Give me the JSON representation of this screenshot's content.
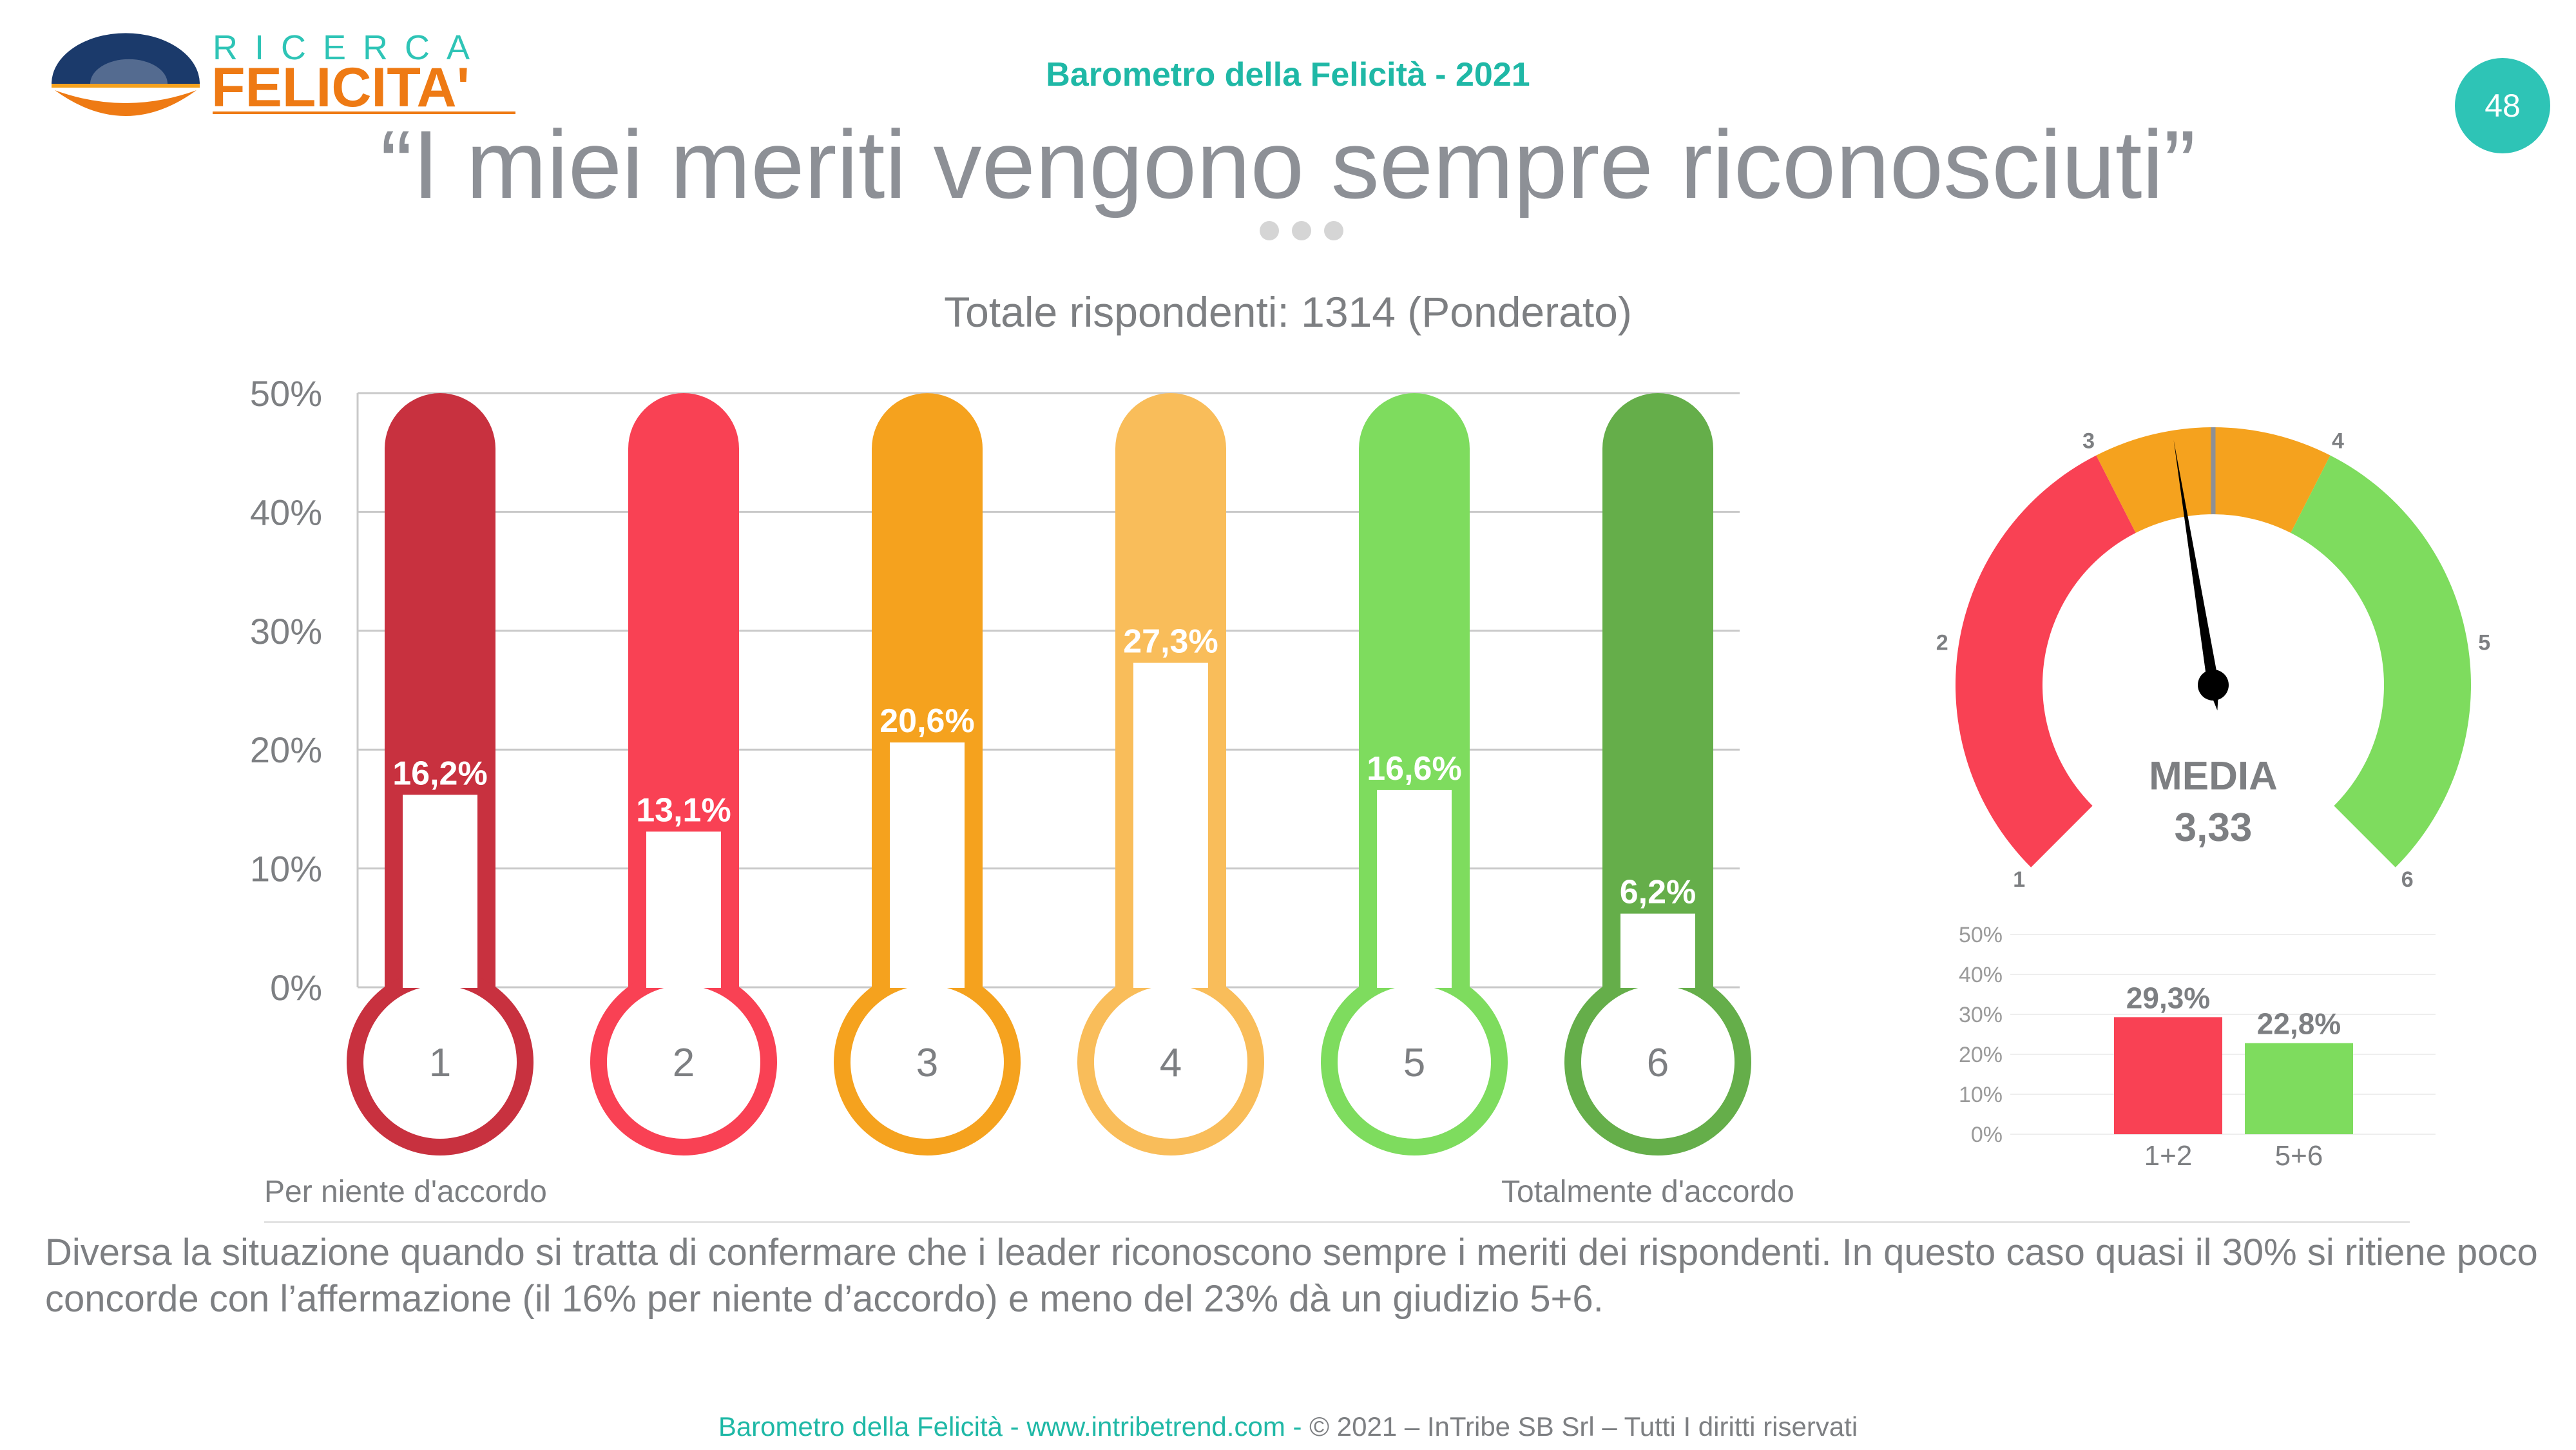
{
  "header": {
    "logo_top": "RICERCA",
    "logo_bottom": "FELICITA'",
    "title": "Barometro della Felicità - 2021",
    "page_number": "48"
  },
  "main_title": "“I miei meriti vengono sempre riconosciuti”",
  "subtitle": "Totale rispondenti: 1314 (Ponderato)",
  "labels": {
    "left": "Per niente d'accordo",
    "right": "Totalmente d'accordo"
  },
  "colors": {
    "teal": "#1fb8a6",
    "scale": [
      "#c8313f",
      "#f94154",
      "#f5a21e",
      "#f9bd5a",
      "#7edc5e",
      "#65ae4a"
    ]
  },
  "chart_data": [
    {
      "type": "bar",
      "categories": [
        "1",
        "2",
        "3",
        "4",
        "5",
        "6"
      ],
      "values": [
        16.2,
        13.1,
        20.6,
        27.3,
        16.6,
        6.2
      ],
      "value_labels": [
        "16,2%",
        "13,1%",
        "20,6%",
        "27,3%",
        "16,6%",
        "6,2%"
      ],
      "y_ticks": [
        "0%",
        "10%",
        "20%",
        "30%",
        "40%",
        "50%"
      ],
      "ylim": [
        0,
        50
      ],
      "grid": true
    },
    {
      "type": "gauge",
      "scale_labels": [
        "1",
        "2",
        "3",
        "4",
        "5",
        "6"
      ],
      "min": 1,
      "max": 6,
      "value": 3.33,
      "label": "MEDIA",
      "value_label": "3,33",
      "zones": [
        {
          "from": 1,
          "to": 3,
          "color": "#f94154"
        },
        {
          "from": 3,
          "to": 4,
          "color": "#f5a21e"
        },
        {
          "from": 4,
          "to": 6,
          "color": "#7edc5e"
        }
      ]
    },
    {
      "type": "bar",
      "categories": [
        "1+2",
        "5+6"
      ],
      "values": [
        29.3,
        22.8
      ],
      "value_labels": [
        "29,3%",
        "22,8%"
      ],
      "colors": [
        "#f94154",
        "#7edc5e"
      ],
      "y_ticks": [
        "0%",
        "10%",
        "20%",
        "30%",
        "40%",
        "50%"
      ],
      "ylim": [
        0,
        50
      ],
      "grid": true
    }
  ],
  "description": "Diversa la situazione quando si tratta di confermare che i leader riconoscono sempre i meriti dei rispondenti. In questo caso quasi il 30% si ritiene poco concorde con l’affermazione (il 16% per niente d’accordo) e meno del 23% dà un giudizio 5+6.",
  "footer": {
    "part1": "Barometro della Felicità - www.intribetrend.com",
    "separator": " - ",
    "part2": "© 2021 – InTribe SB Srl – Tutti I diritti riservati"
  }
}
